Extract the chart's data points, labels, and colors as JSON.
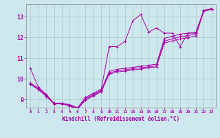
{
  "xlabel": "Windchill (Refroidissement éolien,°C)",
  "bg_color": "#cce8ee",
  "line_color": "#aa00aa",
  "grid_color": "#aabbbb",
  "xlim": [
    -0.5,
    23.5
  ],
  "ylim": [
    8.6,
    13.6
  ],
  "xticks": [
    0,
    1,
    2,
    3,
    4,
    5,
    6,
    7,
    8,
    9,
    10,
    11,
    12,
    13,
    14,
    15,
    16,
    17,
    18,
    19,
    20,
    21,
    22,
    23
  ],
  "yticks": [
    9,
    10,
    11,
    12,
    13
  ],
  "series": [
    [
      10.5,
      9.6,
      9.25,
      8.8,
      8.8,
      8.75,
      8.6,
      9.1,
      9.3,
      9.5,
      11.55,
      11.55,
      11.8,
      12.8,
      13.1,
      12.25,
      12.45,
      12.2,
      12.2,
      11.55,
      12.2,
      12.2,
      13.3,
      13.38
    ],
    [
      9.8,
      9.55,
      9.2,
      8.82,
      8.82,
      8.72,
      8.57,
      9.05,
      9.25,
      9.45,
      10.35,
      10.45,
      10.5,
      10.55,
      10.6,
      10.65,
      10.7,
      11.95,
      12.05,
      12.15,
      12.2,
      12.25,
      13.3,
      13.38
    ],
    [
      9.75,
      9.5,
      9.18,
      8.8,
      8.8,
      8.7,
      8.55,
      9.0,
      9.2,
      9.4,
      10.28,
      10.38,
      10.43,
      10.48,
      10.53,
      10.57,
      10.62,
      11.82,
      11.92,
      12.02,
      12.08,
      12.18,
      13.28,
      13.36
    ],
    [
      9.72,
      9.48,
      9.15,
      8.78,
      8.78,
      8.68,
      8.53,
      8.97,
      9.17,
      9.37,
      10.22,
      10.32,
      10.37,
      10.42,
      10.47,
      10.52,
      10.57,
      11.72,
      11.82,
      11.92,
      11.98,
      12.08,
      13.26,
      13.34
    ]
  ]
}
